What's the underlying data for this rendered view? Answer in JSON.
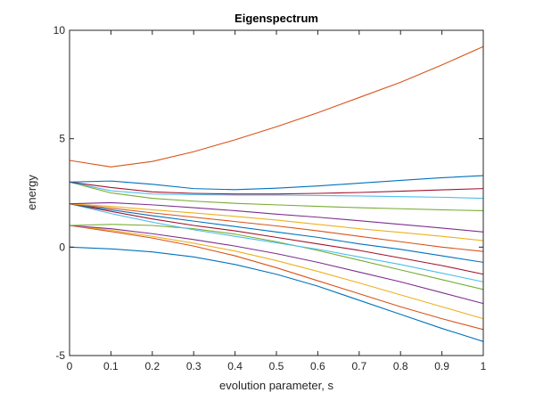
{
  "chart_data": {
    "type": "line",
    "title": "Eigenspectrum",
    "xlabel": "evolution parameter, s",
    "ylabel": "energy",
    "xlim": [
      0,
      1
    ],
    "ylim": [
      -5,
      10
    ],
    "xticks": [
      "0",
      "0.1",
      "0.2",
      "0.3",
      "0.4",
      "0.5",
      "0.6",
      "0.7",
      "0.8",
      "0.9",
      "1"
    ],
    "yticks": [
      "-5",
      "0",
      "5",
      "10"
    ],
    "grid": false,
    "box": true,
    "x": [
      0,
      0.1,
      0.2,
      0.3,
      0.4,
      0.5,
      0.6,
      0.7,
      0.8,
      0.9,
      1.0
    ],
    "series": [
      {
        "color": "#0072BD",
        "values": [
          0.0,
          -0.08,
          -0.22,
          -0.45,
          -0.8,
          -1.25,
          -1.8,
          -2.45,
          -3.1,
          -3.75,
          -4.35
        ]
      },
      {
        "color": "#D95319",
        "values": [
          1.0,
          0.72,
          0.42,
          0.05,
          -0.4,
          -0.95,
          -1.55,
          -2.15,
          -2.75,
          -3.3,
          -3.8
        ]
      },
      {
        "color": "#EDB120",
        "values": [
          1.0,
          0.78,
          0.5,
          0.18,
          -0.18,
          -0.62,
          -1.12,
          -1.65,
          -2.2,
          -2.75,
          -3.3
        ]
      },
      {
        "color": "#7E2F8E",
        "values": [
          1.0,
          0.85,
          0.62,
          0.35,
          0.05,
          -0.3,
          -0.7,
          -1.15,
          -1.6,
          -2.1,
          -2.6
        ]
      },
      {
        "color": "#77AC30",
        "values": [
          1.0,
          1.05,
          1.0,
          0.85,
          0.6,
          0.25,
          -0.15,
          -0.6,
          -1.05,
          -1.5,
          -1.95
        ]
      },
      {
        "color": "#4DBEEE",
        "values": [
          2.0,
          1.55,
          1.15,
          0.8,
          0.5,
          0.2,
          -0.1,
          -0.45,
          -0.8,
          -1.2,
          -1.6
        ]
      },
      {
        "color": "#A2142F",
        "values": [
          2.0,
          1.65,
          1.3,
          1.0,
          0.75,
          0.45,
          0.15,
          -0.15,
          -0.5,
          -0.85,
          -1.25
        ]
      },
      {
        "color": "#0072BD",
        "values": [
          2.0,
          1.72,
          1.45,
          1.2,
          0.95,
          0.7,
          0.45,
          0.15,
          -0.1,
          -0.4,
          -0.7
        ]
      },
      {
        "color": "#D95319",
        "values": [
          2.0,
          1.8,
          1.58,
          1.38,
          1.18,
          0.98,
          0.75,
          0.5,
          0.25,
          0.0,
          -0.2
        ]
      },
      {
        "color": "#EDB120",
        "values": [
          2.0,
          1.88,
          1.72,
          1.58,
          1.42,
          1.25,
          1.05,
          0.85,
          0.68,
          0.5,
          0.3
        ]
      },
      {
        "color": "#7E2F8E",
        "values": [
          2.0,
          2.05,
          1.95,
          1.82,
          1.68,
          1.52,
          1.38,
          1.22,
          1.05,
          0.88,
          0.7
        ]
      },
      {
        "color": "#77AC30",
        "values": [
          3.0,
          2.5,
          2.25,
          2.12,
          2.02,
          1.95,
          1.88,
          1.82,
          1.77,
          1.72,
          1.68
        ]
      },
      {
        "color": "#4DBEEE",
        "values": [
          3.0,
          2.6,
          2.45,
          2.42,
          2.4,
          2.4,
          2.38,
          2.36,
          2.33,
          2.3,
          2.25
        ]
      },
      {
        "color": "#A2142F",
        "values": [
          3.0,
          2.75,
          2.55,
          2.48,
          2.45,
          2.45,
          2.48,
          2.52,
          2.58,
          2.64,
          2.7
        ]
      },
      {
        "color": "#0072BD",
        "values": [
          3.0,
          3.05,
          2.9,
          2.7,
          2.65,
          2.72,
          2.82,
          2.95,
          3.08,
          3.2,
          3.3
        ]
      },
      {
        "color": "#D95319",
        "values": [
          4.0,
          3.7,
          3.95,
          4.4,
          4.95,
          5.55,
          6.2,
          6.9,
          7.6,
          8.4,
          9.25
        ]
      }
    ]
  }
}
